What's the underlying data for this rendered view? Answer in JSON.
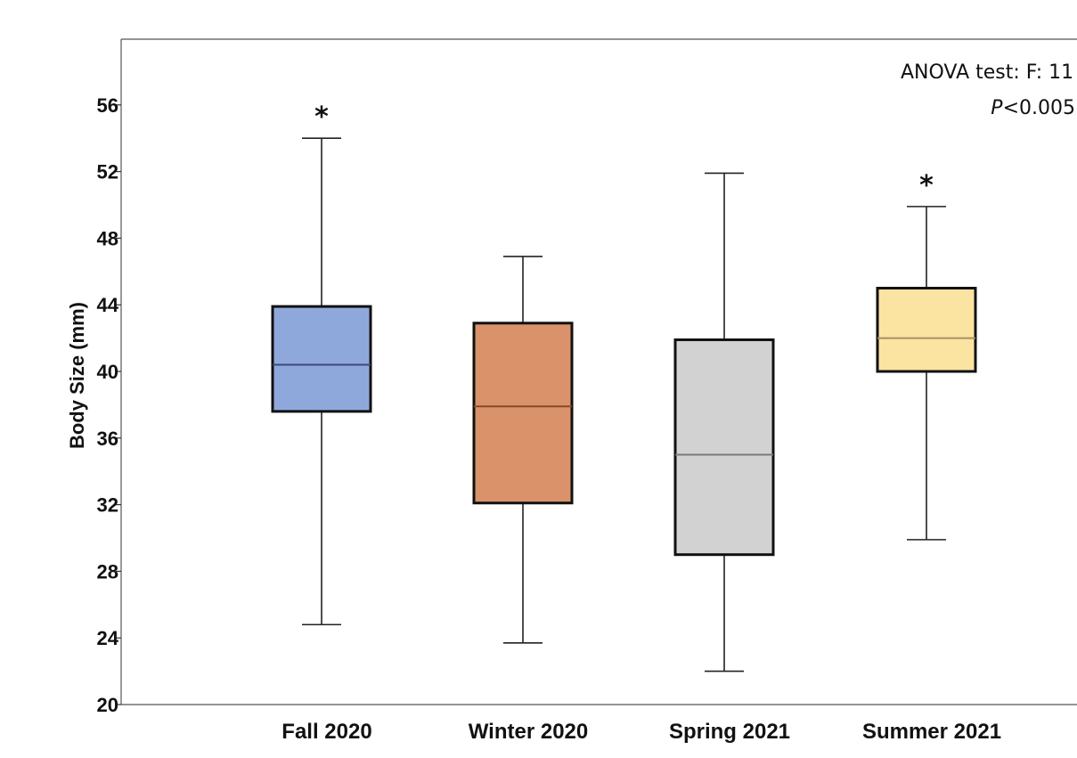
{
  "chart_data": {
    "type": "boxplot",
    "ylabel": "Body Size (mm)",
    "ylim": [
      20,
      60
    ],
    "yticks": [
      20,
      24,
      28,
      32,
      36,
      40,
      44,
      48,
      52,
      56
    ],
    "grid": false,
    "annotation": {
      "line1": "ANOVA test: F: 11",
      "line2_italic": "P",
      "line2_rest": "<0.005"
    },
    "categories": [
      "Fall 2020",
      "Winter 2020",
      "Spring 2021",
      "Summer 2021"
    ],
    "boxes": [
      {
        "category": "Fall 2020",
        "min": 24.8,
        "q1": 37.6,
        "median": 40.4,
        "q3": 43.9,
        "max": 54,
        "color": "#8fa8dc",
        "median_color": "#3a4a7a",
        "marker": "*"
      },
      {
        "category": "Winter 2020",
        "min": 23.7,
        "q1": 32.1,
        "median": 37.9,
        "q3": 42.9,
        "max": 46.9,
        "color": "#d9926a",
        "median_color": "#8a4a2a",
        "marker": ""
      },
      {
        "category": "Spring 2021",
        "min": 22,
        "q1": 29,
        "median": 35,
        "q3": 41.9,
        "max": 51.9,
        "color": "#d2d2d2",
        "median_color": "#7a7a7a",
        "marker": ""
      },
      {
        "category": "Summer 2021",
        "min": 29.9,
        "q1": 40,
        "median": 42,
        "q3": 45,
        "max": 49.9,
        "color": "#fbe3a2",
        "median_color": "#a89060",
        "marker": "*"
      }
    ]
  }
}
